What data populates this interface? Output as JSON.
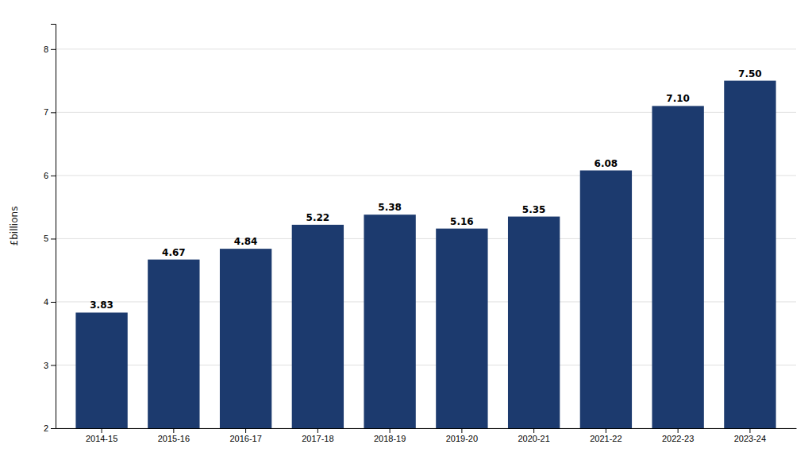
{
  "chart_data": {
    "type": "bar",
    "ylabel": "£billions",
    "categories": [
      "2014-15",
      "2015-16",
      "2016-17",
      "2017-18",
      "2018-19",
      "2019-20",
      "2020-21",
      "2021-22",
      "2022-23",
      "2023-24"
    ],
    "values": [
      3.83,
      4.67,
      4.84,
      5.22,
      5.38,
      5.16,
      5.35,
      6.08,
      7.1,
      7.5
    ],
    "value_labels": [
      "3.83",
      "4.67",
      "4.84",
      "5.22",
      "5.38",
      "5.16",
      "5.35",
      "6.08",
      "7.10",
      "7.50"
    ],
    "color": "#1c3a6e",
    "ylim": [
      2,
      8.4
    ],
    "yticks": [
      2,
      3,
      4,
      5,
      6,
      7,
      8
    ],
    "grid": true,
    "data_labels": true
  }
}
